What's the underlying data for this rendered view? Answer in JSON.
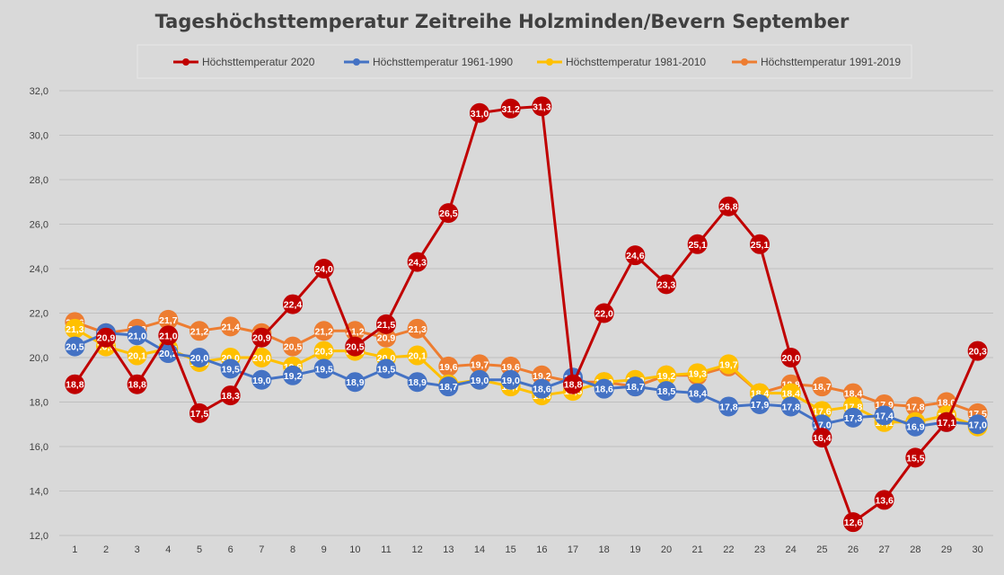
{
  "chart_data": {
    "type": "line",
    "title": "Tageshöchsttemperatur Zeitreihe Holzminden/Bevern September",
    "xlabel": "",
    "ylabel": "",
    "ylim": [
      12.0,
      32.0
    ],
    "y_ticks": [
      "12,0",
      "14,0",
      "16,0",
      "18,0",
      "20,0",
      "22,0",
      "24,0",
      "26,0",
      "28,0",
      "30,0",
      "32,0"
    ],
    "y_tick_values": [
      12,
      14,
      16,
      18,
      20,
      22,
      24,
      26,
      28,
      30,
      32
    ],
    "grid": true,
    "legend_position": "top",
    "categories": [
      "1",
      "2",
      "3",
      "4",
      "5",
      "6",
      "7",
      "8",
      "9",
      "10",
      "11",
      "12",
      "13",
      "14",
      "15",
      "16",
      "17",
      "18",
      "19",
      "20",
      "21",
      "22",
      "23",
      "24",
      "25",
      "26",
      "27",
      "28",
      "29",
      "30"
    ],
    "series": [
      {
        "name": "Höchsttemperatur 1991-2019",
        "color": "#ed7d31",
        "values": [
          21.6,
          21.1,
          21.3,
          21.7,
          21.2,
          21.4,
          21.1,
          20.5,
          21.2,
          21.2,
          20.9,
          21.3,
          19.6,
          19.7,
          19.6,
          19.2,
          18.9,
          18.9,
          18.7,
          19.2,
          19.2,
          19.6,
          18.4,
          18.8,
          18.7,
          18.4,
          17.9,
          17.8,
          18.0,
          17.5
        ],
        "labels": [
          "21,6",
          "21,1",
          "21,3",
          "21,7",
          "21,2",
          "21,4",
          "21,1",
          "20,5",
          "21,2",
          "21,2",
          "20,9",
          "21,3",
          "19,6",
          "19,7",
          "19,6",
          "19,2",
          "18,9",
          "18,9",
          "18,7",
          "19,2",
          "19,2",
          "19,6",
          "18,4",
          "18,8",
          "18,7",
          "18,4",
          "17,9",
          "17,8",
          "18,0",
          "17,5"
        ]
      },
      {
        "name": "Höchsttemperatur 1981-2010",
        "color": "#ffc000",
        "values": [
          21.3,
          20.5,
          20.1,
          20.4,
          19.8,
          20.0,
          20.0,
          19.6,
          20.3,
          20.3,
          20.0,
          20.1,
          18.8,
          19.0,
          18.7,
          18.3,
          18.5,
          18.9,
          19.0,
          19.2,
          19.3,
          19.7,
          18.4,
          18.4,
          17.6,
          17.8,
          17.1,
          17.1,
          17.4,
          16.9
        ],
        "labels": [
          "21,3",
          "20,5",
          "20,1",
          "20,4",
          "19,8",
          "20,0",
          "20,0",
          "19,6",
          "20,3",
          "20,3",
          "20,0",
          "20,1",
          "18,8",
          "19,0",
          "18,7",
          "18,3",
          "18,5",
          "18,9",
          "19,0",
          "19,2",
          "19,3",
          "19,7",
          "18,4",
          "18,4",
          "17,6",
          "17,8",
          "17,1",
          "17,1",
          "17,4",
          "16,9"
        ]
      },
      {
        "name": "Höchsttemperatur 1961-1990",
        "color": "#4472c4",
        "values": [
          20.5,
          21.1,
          21.0,
          20.2,
          20.0,
          19.5,
          19.0,
          19.2,
          19.5,
          18.9,
          19.5,
          18.9,
          18.7,
          19.0,
          19.0,
          18.6,
          19.1,
          18.6,
          18.7,
          18.5,
          18.4,
          17.8,
          17.9,
          17.8,
          17.0,
          17.3,
          17.4,
          16.9,
          17.1,
          17.0
        ],
        "labels": [
          "20,5",
          "21,1",
          "21,0",
          "20,2",
          "20,0",
          "19,5",
          "19,0",
          "19,2",
          "19,5",
          "18,9",
          "19,5",
          "18,9",
          "18,7",
          "19,0",
          "19,0",
          "18,6",
          "19,1",
          "18,6",
          "18,7",
          "18,5",
          "18,4",
          "17,8",
          "17,9",
          "17,8",
          "17,0",
          "17,3",
          "17,4",
          "16,9",
          "17,1",
          "17,0"
        ]
      },
      {
        "name": "Höchsttemperatur 2020",
        "color": "#c00000",
        "values": [
          18.8,
          20.9,
          18.8,
          21.0,
          17.5,
          18.3,
          20.9,
          22.4,
          24.0,
          20.5,
          21.5,
          24.3,
          26.5,
          31.0,
          31.2,
          31.3,
          18.8,
          22.0,
          24.6,
          23.3,
          25.1,
          26.8,
          25.1,
          20.0,
          16.4,
          12.6,
          13.6,
          15.5,
          17.1,
          20.3
        ],
        "labels": [
          "18,8",
          "20,9",
          "18,8",
          "21,0",
          "17,5",
          "18,3",
          "20,9",
          "22,4",
          "24,0",
          "20,5",
          "21,5",
          "24,3",
          "26,5",
          "31,0",
          "31,2",
          "31,3",
          "18,8",
          "22,0",
          "24,6",
          "23,3",
          "25,1",
          "26,8",
          "25,1",
          "20,0",
          "16,4",
          "12,6",
          "13,6",
          "15,5",
          "17,1",
          "20,3"
        ]
      }
    ],
    "legend_order": [
      3,
      2,
      1,
      0
    ]
  }
}
